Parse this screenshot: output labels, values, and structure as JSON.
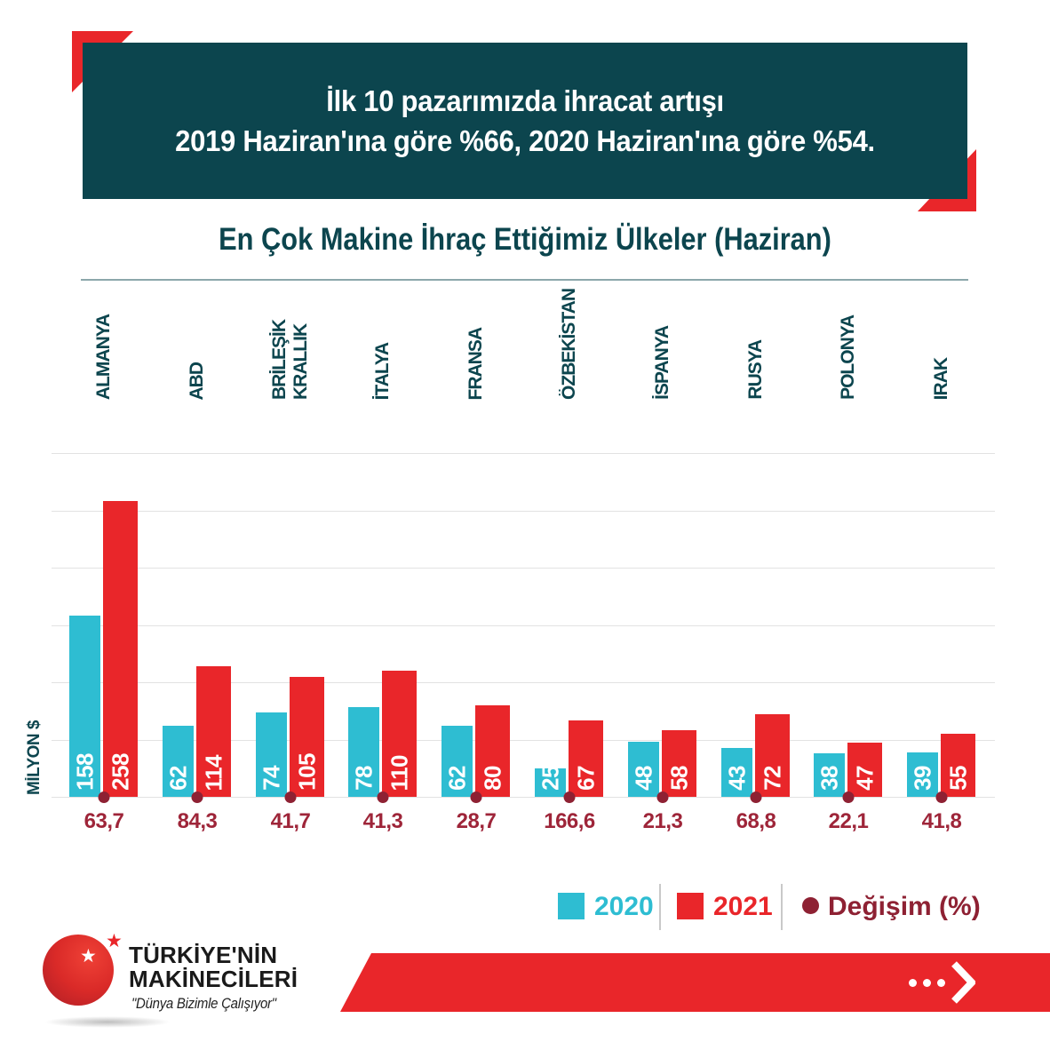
{
  "banner": {
    "line1": "İlk 10 pazarımızda ihracat artışı",
    "line2": "2019 Haziran'ına göre %66, 2020 Haziran'ına göre %54.",
    "bg_color": "#0c454e",
    "accent_color": "#e9262a"
  },
  "chart_data": {
    "type": "bar",
    "title": "En Çok Makine İhraç Ettiğimiz Ülkeler (Haziran)",
    "ylabel": "MİLYON $",
    "ylim": [
      0,
      300
    ],
    "gridline_step": 50,
    "grid": true,
    "legend_position": "bottom-right",
    "categories": [
      "ALMANYA",
      "ABD",
      "BRİLEŞİK KRALLIK",
      "İTALYA",
      "FRANSA",
      "ÖZBEKİSTAN",
      "İSPANYA",
      "RUSYA",
      "POLONYA",
      "IRAK"
    ],
    "series": [
      {
        "name": "2020",
        "color": "#2ebdd2",
        "values": [
          158,
          62,
          74,
          78,
          62,
          25,
          48,
          43,
          38,
          39
        ]
      },
      {
        "name": "2021",
        "color": "#e9262a",
        "values": [
          258,
          114,
          105,
          110,
          80,
          67,
          58,
          72,
          47,
          55
        ]
      }
    ],
    "change_label": "Değişim (%)",
    "change_color": "#8e2133",
    "change_values": [
      "63,7",
      "84,3",
      "41,7",
      "41,3",
      "28,7",
      "166,6",
      "21,3",
      "68,8",
      "22,1",
      "41,8"
    ]
  },
  "legend": {
    "items": [
      {
        "label": "2020",
        "color": "#2ebdd2",
        "shape": "square"
      },
      {
        "label": "2021",
        "color": "#e9262a",
        "shape": "square"
      },
      {
        "label": "Değişim (%)",
        "color": "#8e2133",
        "shape": "circle"
      }
    ]
  },
  "footer": {
    "brand_line1": "TÜRKİYE'NİN",
    "brand_line2": "MAKİNECİLERİ",
    "tagline": "\"Dünya Bizimle Çalışıyor\""
  }
}
